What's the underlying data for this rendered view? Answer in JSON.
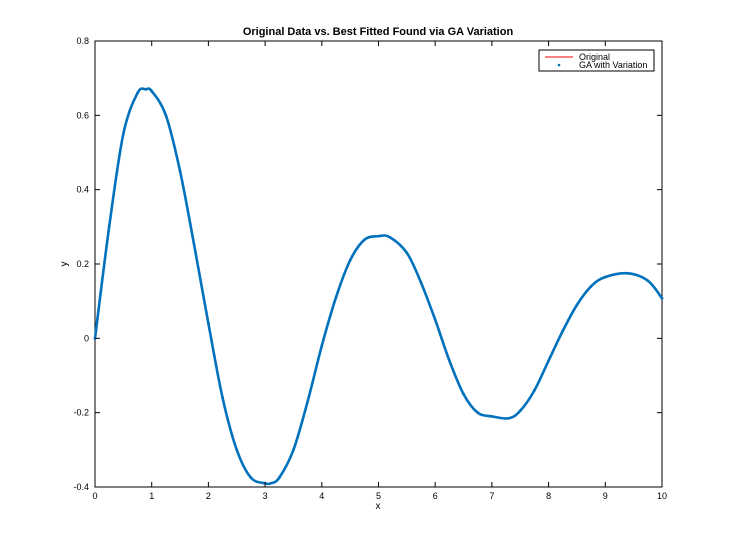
{
  "chart_data": {
    "type": "line",
    "title": "Original Data vs. Best Fitted Found via GA Variation",
    "xlabel": "x",
    "ylabel": "y",
    "xlim": [
      0,
      10
    ],
    "ylim": [
      -0.4,
      0.8
    ],
    "xticks": [
      "0",
      "1",
      "2",
      "3",
      "4",
      "5",
      "6",
      "7",
      "8",
      "9",
      "10"
    ],
    "yticks": [
      "-0.4",
      "-0.2",
      "0",
      "0.2",
      "0.4",
      "0.6",
      "0.8"
    ],
    "grid": false,
    "legend_position": "top-right",
    "series": [
      {
        "name": "Original",
        "style": "line",
        "color": "#ff0000",
        "x": [
          0,
          0.25,
          0.5,
          0.75,
          0.9,
          1.0,
          1.25,
          1.5,
          1.75,
          2.0,
          2.25,
          2.5,
          2.75,
          3.0,
          3.1,
          3.25,
          3.5,
          3.75,
          4.0,
          4.25,
          4.5,
          4.75,
          5.0,
          5.2,
          5.5,
          5.75,
          6.0,
          6.25,
          6.5,
          6.75,
          7.0,
          7.3,
          7.5,
          7.75,
          8.0,
          8.25,
          8.5,
          8.75,
          9.0,
          9.4,
          9.75,
          10.0
        ],
        "y": [
          0,
          0.3,
          0.55,
          0.66,
          0.67,
          0.665,
          0.6,
          0.45,
          0.25,
          0.04,
          -0.16,
          -0.3,
          -0.375,
          -0.39,
          -0.39,
          -0.375,
          -0.3,
          -0.17,
          -0.02,
          0.11,
          0.21,
          0.265,
          0.275,
          0.272,
          0.23,
          0.15,
          0.05,
          -0.06,
          -0.15,
          -0.2,
          -0.21,
          -0.215,
          -0.195,
          -0.14,
          -0.06,
          0.02,
          0.09,
          0.14,
          0.165,
          0.175,
          0.155,
          0.108
        ]
      },
      {
        "name": "GA with Variation",
        "style": "dots",
        "color": "#0072bd",
        "x": [
          0,
          0.25,
          0.5,
          0.75,
          0.9,
          1.0,
          1.25,
          1.5,
          1.75,
          2.0,
          2.25,
          2.5,
          2.75,
          3.0,
          3.1,
          3.25,
          3.5,
          3.75,
          4.0,
          4.25,
          4.5,
          4.75,
          5.0,
          5.2,
          5.5,
          5.75,
          6.0,
          6.25,
          6.5,
          6.75,
          7.0,
          7.3,
          7.5,
          7.75,
          8.0,
          8.25,
          8.5,
          8.75,
          9.0,
          9.4,
          9.75,
          10.0
        ],
        "y": [
          0,
          0.3,
          0.55,
          0.66,
          0.67,
          0.665,
          0.6,
          0.45,
          0.25,
          0.04,
          -0.16,
          -0.3,
          -0.375,
          -0.39,
          -0.39,
          -0.375,
          -0.3,
          -0.17,
          -0.02,
          0.11,
          0.21,
          0.265,
          0.275,
          0.272,
          0.23,
          0.15,
          0.05,
          -0.06,
          -0.15,
          -0.2,
          -0.21,
          -0.215,
          -0.195,
          -0.14,
          -0.06,
          0.02,
          0.09,
          0.14,
          0.165,
          0.175,
          0.155,
          0.108
        ]
      }
    ]
  }
}
